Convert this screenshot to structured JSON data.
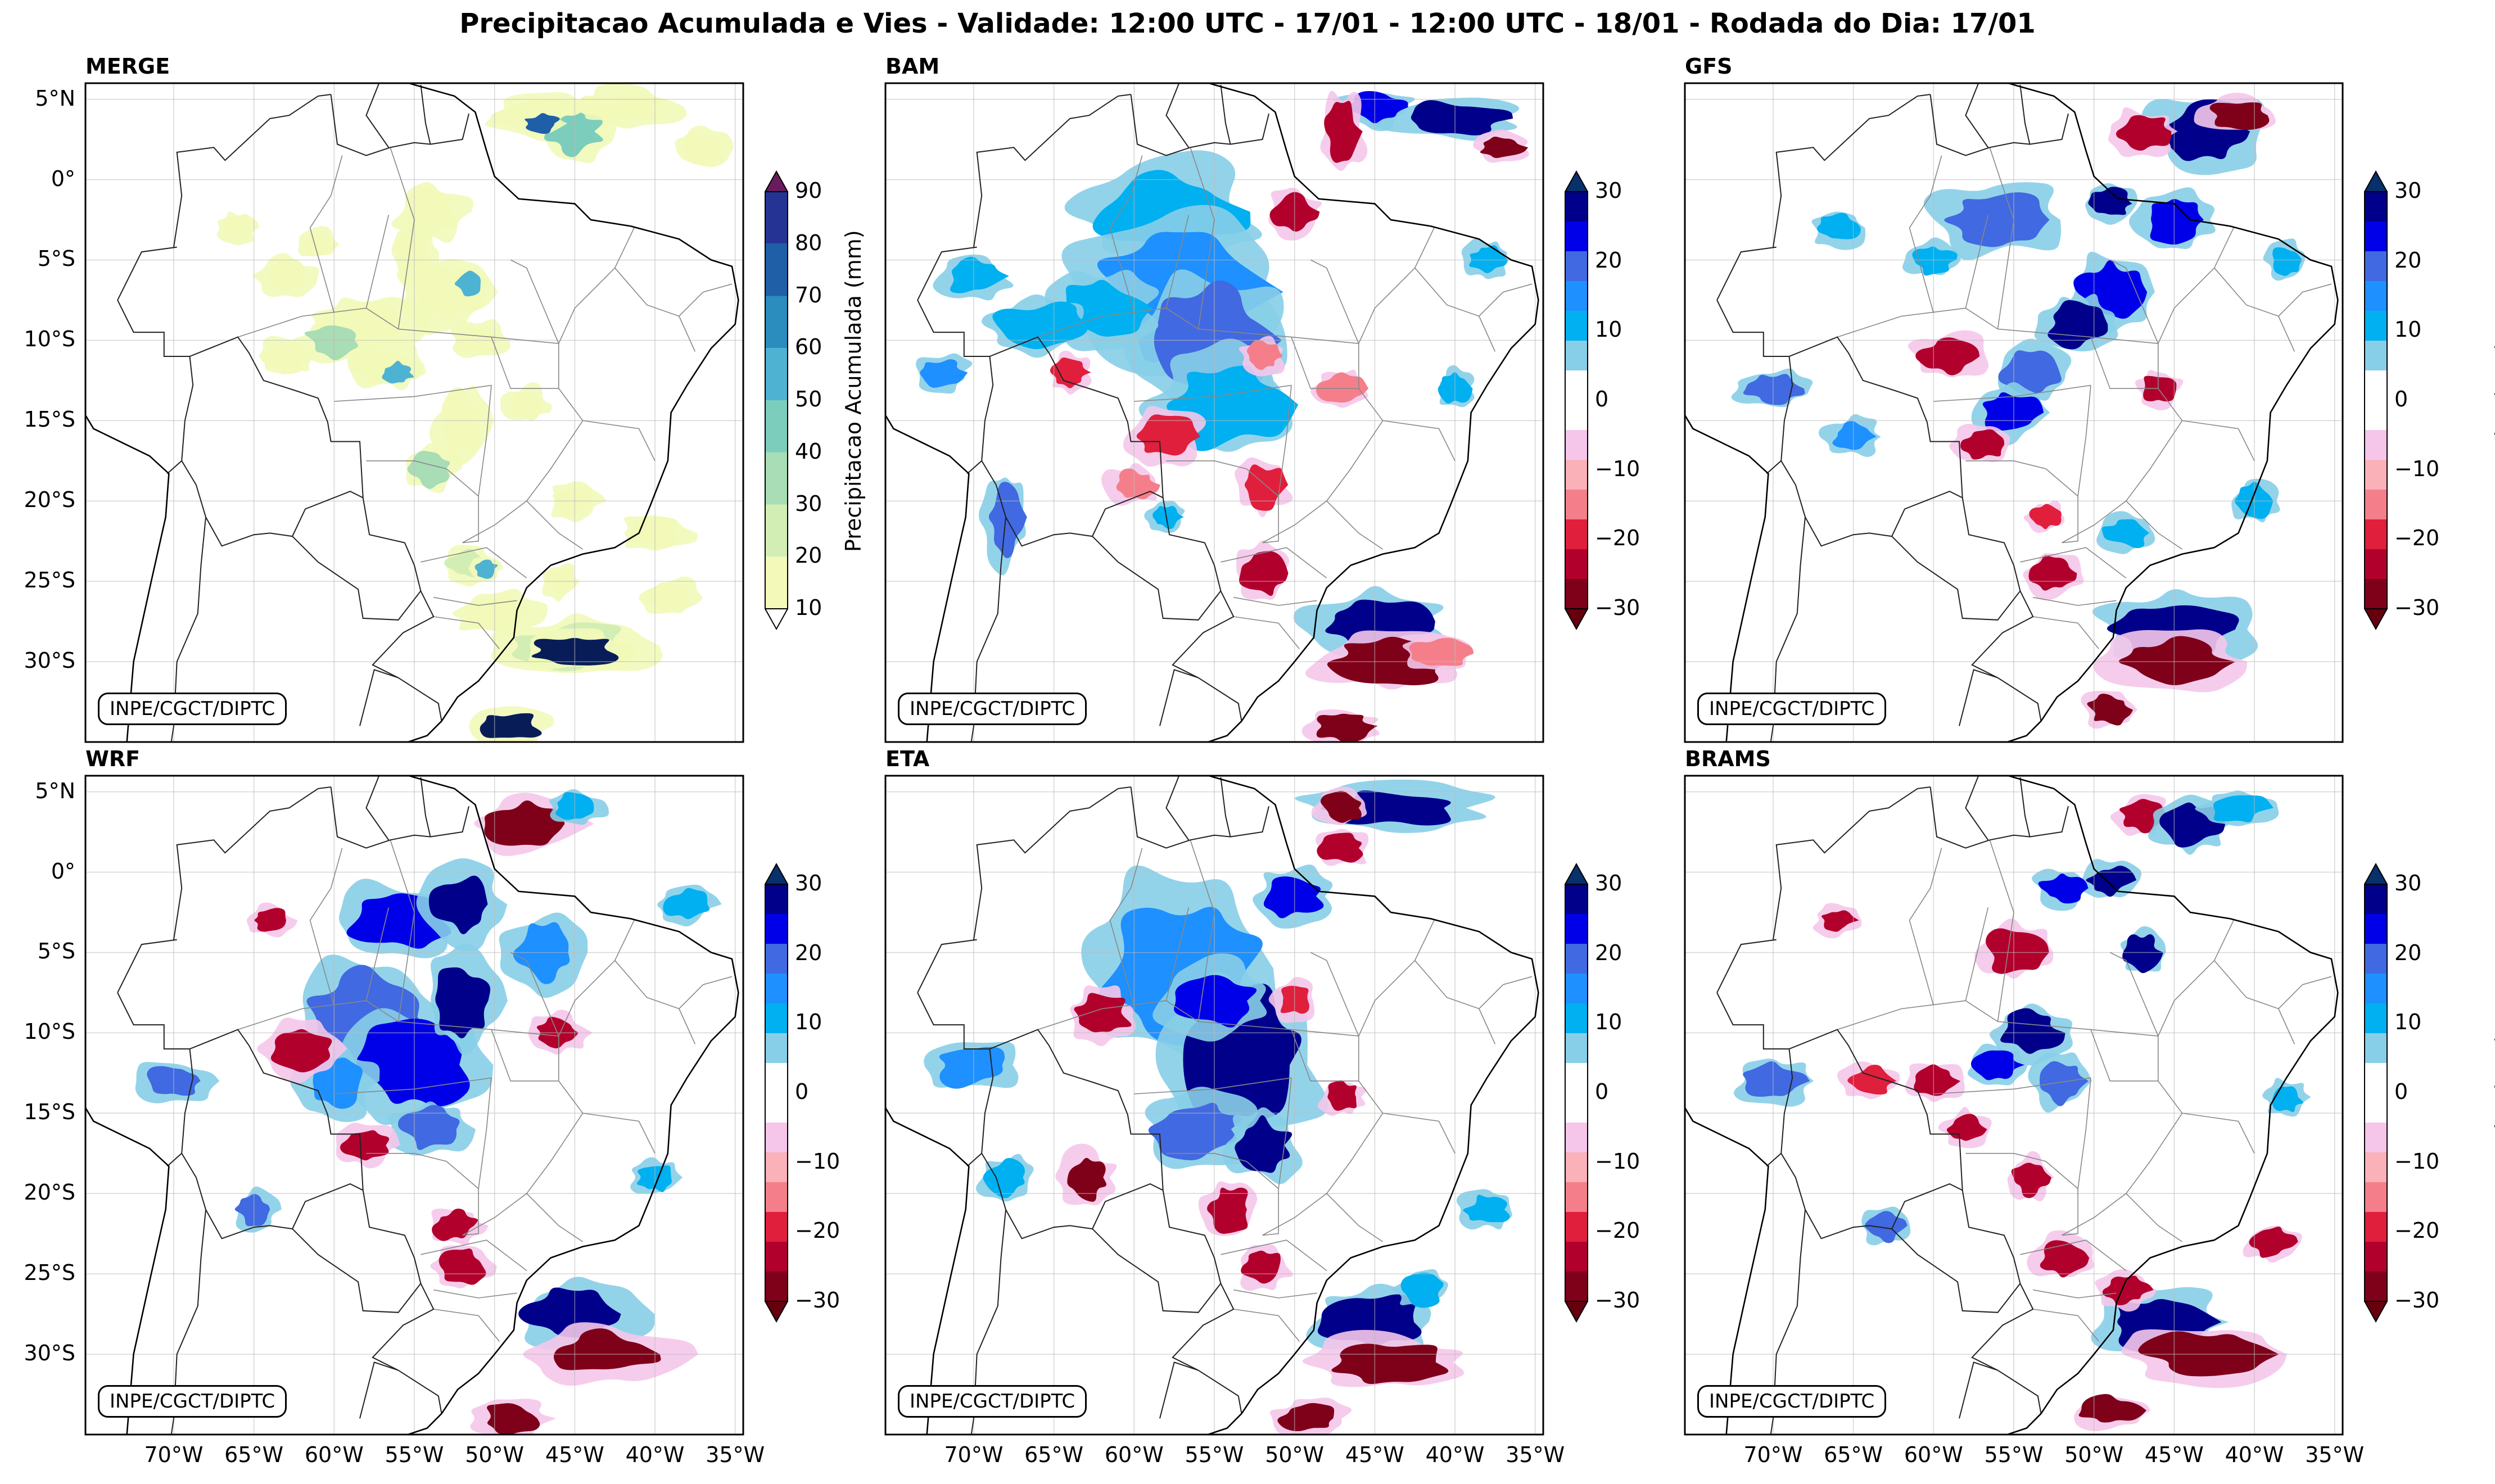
{
  "title": "Precipitacao Acumulada e Vies - Validade: 12:00 UTC - 17/01 - 12:00 UTC - 18/01 - Rodada do Dia: 17/01",
  "credit": "INPE/CGCT/DIPTC",
  "lat_labels": [
    "5°N",
    "0°",
    "5°S",
    "10°S",
    "15°S",
    "20°S",
    "25°S",
    "30°S"
  ],
  "lon_labels": [
    "70°W",
    "65°W",
    "60°W",
    "55°W",
    "50°W",
    "45°W",
    "40°W",
    "35°W"
  ],
  "panels": [
    {
      "name": "MERGE",
      "kind": "precip"
    },
    {
      "name": "BAM",
      "kind": "bias"
    },
    {
      "name": "GFS",
      "kind": "bias"
    },
    {
      "name": "WRF",
      "kind": "bias"
    },
    {
      "name": "ETA",
      "kind": "bias"
    },
    {
      "name": "BRAMS",
      "kind": "bias"
    }
  ],
  "precip_colorbar": {
    "label": "Precipitacao Acumulada (mm)",
    "ticks": [
      "10",
      "20",
      "30",
      "40",
      "50",
      "60",
      "70",
      "80",
      "90"
    ],
    "colors": [
      "#f2f9b9",
      "#d3eeb5",
      "#a8ddb5",
      "#7ccdbb",
      "#4eb3d3",
      "#2b8cbe",
      "#1f5fa8",
      "#253494",
      "#081d58"
    ],
    "extend_color": "#6a1b5e"
  },
  "bias_colorbar": {
    "label": "Vies (mm)",
    "ticks": [
      "−30",
      "−20",
      "−10",
      "0",
      "10",
      "20",
      "30"
    ],
    "colors": [
      "#7f0019",
      "#b2002d",
      "#e01f3d",
      "#f47f8a",
      "#fbb1b8",
      "#f5c6ea",
      "#ffffff",
      "#ffffff",
      "#87cee8",
      "#00b0f0",
      "#1e90ff",
      "#4169e1",
      "#0000e8",
      "#00008b"
    ],
    "extend_low": "#67000d",
    "extend_high": "#08306b"
  }
}
